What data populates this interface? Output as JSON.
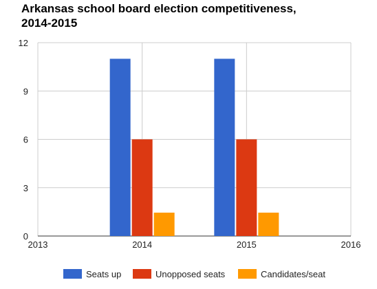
{
  "chart_data": {
    "type": "bar",
    "title_lines": [
      "Arkansas school board election competitiveness,",
      "2014-2015"
    ],
    "x_ticks": [
      "2013",
      "2014",
      "2015",
      "2016"
    ],
    "x_range": [
      2013,
      2016
    ],
    "y_ticks": [
      "0",
      "3",
      "6",
      "9",
      "12"
    ],
    "ylim": [
      0,
      12
    ],
    "grid": true,
    "legend_position": "bottom",
    "categories": [
      "2014",
      "2015"
    ],
    "series": [
      {
        "name": "Seats up",
        "color": "#3366cc",
        "values": [
          11,
          11
        ]
      },
      {
        "name": "Unopposed seats",
        "color": "#dc3912",
        "values": [
          6,
          6
        ]
      },
      {
        "name": "Candidates/seat",
        "color": "#ff9900",
        "values": [
          1.45,
          1.45
        ]
      }
    ]
  }
}
